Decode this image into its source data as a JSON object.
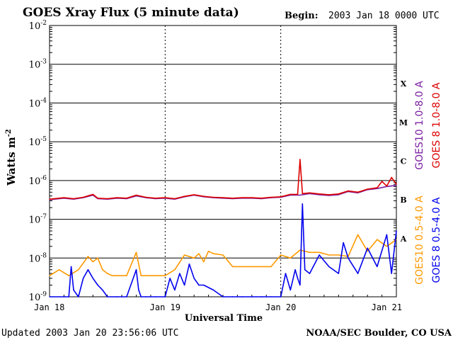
{
  "chart_data": {
    "type": "line",
    "title": "GOES Xray Flux (5 minute data)",
    "begin_label": "Begin:",
    "begin_value": "2003 Jan 18 0000 UTC",
    "ylabel": "Watts m",
    "ylabel_sup": "-2",
    "xlabel": "Universal Time",
    "x_ticks": [
      "Jan 18",
      "Jan 19",
      "Jan 20",
      "Jan 21"
    ],
    "y_ticks": [
      {
        "base": "10",
        "exp": "-2"
      },
      {
        "base": "10",
        "exp": "-3"
      },
      {
        "base": "10",
        "exp": "-4"
      },
      {
        "base": "10",
        "exp": "-5"
      },
      {
        "base": "10",
        "exp": "-6"
      },
      {
        "base": "10",
        "exp": "-7"
      },
      {
        "base": "10",
        "exp": "-8"
      },
      {
        "base": "10",
        "exp": "-9"
      }
    ],
    "ylim_log10": [
      -9,
      -2
    ],
    "xlim_hours": [
      0,
      72
    ],
    "flare_classes": [
      "X",
      "M",
      "C",
      "B",
      "A"
    ],
    "series_colors": {
      "goes10_long": "#7b1fa2",
      "goes8_long": "#dd0000",
      "goes10_short": "#ff9900",
      "goes8_short": "#0000ee"
    },
    "series": [
      {
        "name": "GOES10 1.0-8.0 A",
        "color": "#7b1fa2",
        "x": [
          0,
          3,
          5,
          7,
          9,
          10,
          12,
          14,
          16,
          18,
          20,
          22,
          24,
          26,
          28,
          30,
          32,
          34,
          36,
          38,
          40,
          42,
          44,
          46,
          48,
          50,
          52,
          54,
          56,
          58,
          60,
          62,
          64,
          66,
          68,
          70,
          72
        ],
        "y": [
          3.2e-07,
          3.5e-07,
          3.3e-07,
          3.6e-07,
          4.2e-07,
          3.4e-07,
          3.3e-07,
          3.5e-07,
          3.4e-07,
          4e-07,
          3.6e-07,
          3.4e-07,
          3.5e-07,
          3.3e-07,
          3.8e-07,
          4.2e-07,
          3.8e-07,
          3.6e-07,
          3.5e-07,
          3.4e-07,
          3.5e-07,
          3.5e-07,
          3.4e-07,
          3.6e-07,
          3.7e-07,
          4.2e-07,
          4.2e-07,
          4.6e-07,
          4.3e-07,
          4.1e-07,
          4.3e-07,
          5.2e-07,
          4.8e-07,
          5.8e-07,
          6.2e-07,
          7e-07,
          7.5e-07
        ]
      },
      {
        "name": "GOES 8 1.0-8.0 A",
        "color": "#dd0000",
        "x": [
          0,
          3,
          5,
          7,
          9,
          10,
          12,
          14,
          16,
          18,
          20,
          22,
          24,
          26,
          28,
          30,
          32,
          34,
          36,
          38,
          40,
          42,
          44,
          46,
          48,
          50,
          51.5,
          52,
          52.5,
          54,
          56,
          58,
          60,
          62,
          64,
          66,
          68,
          69,
          70,
          71,
          72
        ],
        "y": [
          3.3e-07,
          3.6e-07,
          3.4e-07,
          3.7e-07,
          4.4e-07,
          3.5e-07,
          3.4e-07,
          3.6e-07,
          3.5e-07,
          4.2e-07,
          3.7e-07,
          3.5e-07,
          3.6e-07,
          3.4e-07,
          3.9e-07,
          4.3e-07,
          3.9e-07,
          3.7e-07,
          3.6e-07,
          3.5e-07,
          3.6e-07,
          3.6e-07,
          3.5e-07,
          3.7e-07,
          3.8e-07,
          4.4e-07,
          4.4e-07,
          3.5e-06,
          4.6e-07,
          4.8e-07,
          4.5e-07,
          4.3e-07,
          4.5e-07,
          5.4e-07,
          5e-07,
          6e-07,
          6.5e-07,
          9.5e-07,
          7.2e-07,
          1.2e-06,
          8e-07
        ]
      },
      {
        "name": "GOES10 0.5-4.0 A",
        "color": "#ff9900",
        "x": [
          0,
          2,
          4,
          6,
          8,
          9,
          10,
          11,
          12,
          13,
          14,
          16,
          18,
          19,
          20,
          22,
          24,
          26,
          28,
          30,
          31,
          32,
          33,
          34,
          36,
          38,
          40,
          42,
          44,
          46,
          48,
          50,
          52,
          54,
          56,
          58,
          60,
          62,
          64,
          66,
          68,
          70,
          72
        ],
        "y": [
          3.5e-09,
          5e-09,
          3.5e-09,
          5e-09,
          1.1e-08,
          8e-09,
          1e-08,
          5e-09,
          4e-09,
          3.5e-09,
          3.5e-09,
          3.5e-09,
          1.4e-08,
          3.5e-09,
          3.5e-09,
          3.5e-09,
          3.5e-09,
          5e-09,
          1.2e-08,
          1e-08,
          1.3e-08,
          8e-09,
          1.5e-08,
          1.3e-08,
          1.2e-08,
          6e-09,
          6e-09,
          6e-09,
          6e-09,
          6e-09,
          1.2e-08,
          1e-08,
          1.6e-08,
          1.4e-08,
          1.4e-08,
          1.2e-08,
          1.2e-08,
          1.1e-08,
          4e-08,
          1.5e-08,
          3e-08,
          2e-08,
          3e-08
        ]
      },
      {
        "name": "GOES 8 0.5-4.0 A",
        "color": "#0000ee",
        "x": [
          0,
          3,
          4,
          4.5,
          5,
          6,
          7,
          8,
          9,
          10,
          11,
          12,
          14,
          16,
          18,
          18.5,
          19,
          20,
          22,
          24,
          25,
          26,
          27,
          28,
          29,
          30,
          31,
          32,
          34,
          36,
          38,
          40,
          42,
          44,
          46,
          48,
          49,
          50,
          51,
          51.5,
          52,
          52.5,
          53,
          54,
          56,
          58,
          60,
          61,
          62,
          64,
          66,
          68,
          70,
          71,
          72
        ],
        "y": [
          1e-09,
          1e-09,
          1e-09,
          6e-09,
          1.5e-09,
          1e-09,
          3e-09,
          5e-09,
          3e-09,
          2e-09,
          1.5e-09,
          1e-09,
          1e-09,
          1e-09,
          5e-09,
          1.5e-09,
          1e-09,
          1e-09,
          1e-09,
          1e-09,
          3e-09,
          1.5e-09,
          4e-09,
          2e-09,
          7e-09,
          3e-09,
          2e-09,
          2e-09,
          1.5e-09,
          1e-09,
          1e-09,
          1e-09,
          1e-09,
          1e-09,
          1e-09,
          1e-09,
          4e-09,
          1.5e-09,
          5e-09,
          3e-09,
          2e-09,
          2.5e-07,
          5e-09,
          4e-09,
          1.2e-08,
          6e-09,
          4e-09,
          2.5e-08,
          1e-08,
          4e-09,
          1.8e-08,
          6e-09,
          4e-08,
          4e-09,
          5e-08
        ]
      }
    ]
  },
  "footer": {
    "updated": "Updated 2003 Jan 20 23:56:06 UTC",
    "credit": "NOAA/SEC Boulder, CO USA"
  }
}
